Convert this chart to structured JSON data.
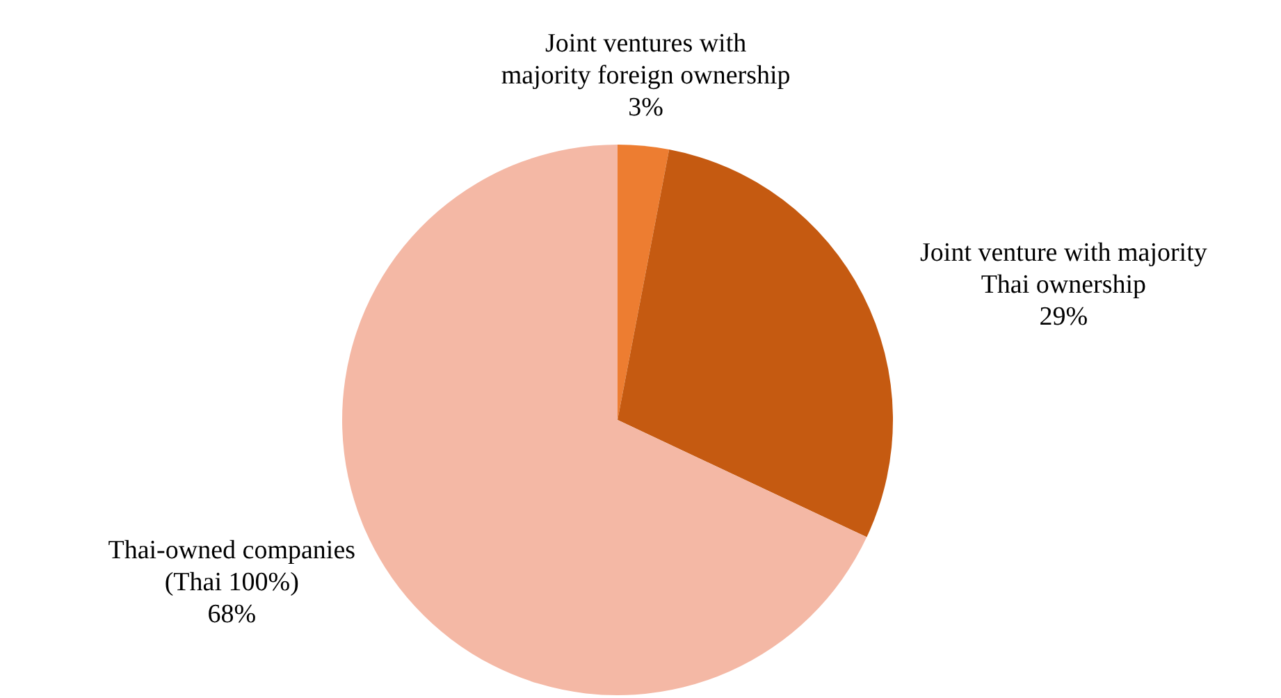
{
  "chart_data": {
    "type": "pie",
    "categories": [
      "Joint ventures with\nmajority foreign ownership",
      "Joint venture with majority\nThai ownership",
      "Thai-owned companies\n(Thai 100%)"
    ],
    "values": [
      3,
      29,
      68
    ],
    "colors": [
      "#ed7d31",
      "#c55a11",
      "#f4b8a5"
    ],
    "value_labels": [
      "3%",
      "29%",
      "68%"
    ]
  }
}
